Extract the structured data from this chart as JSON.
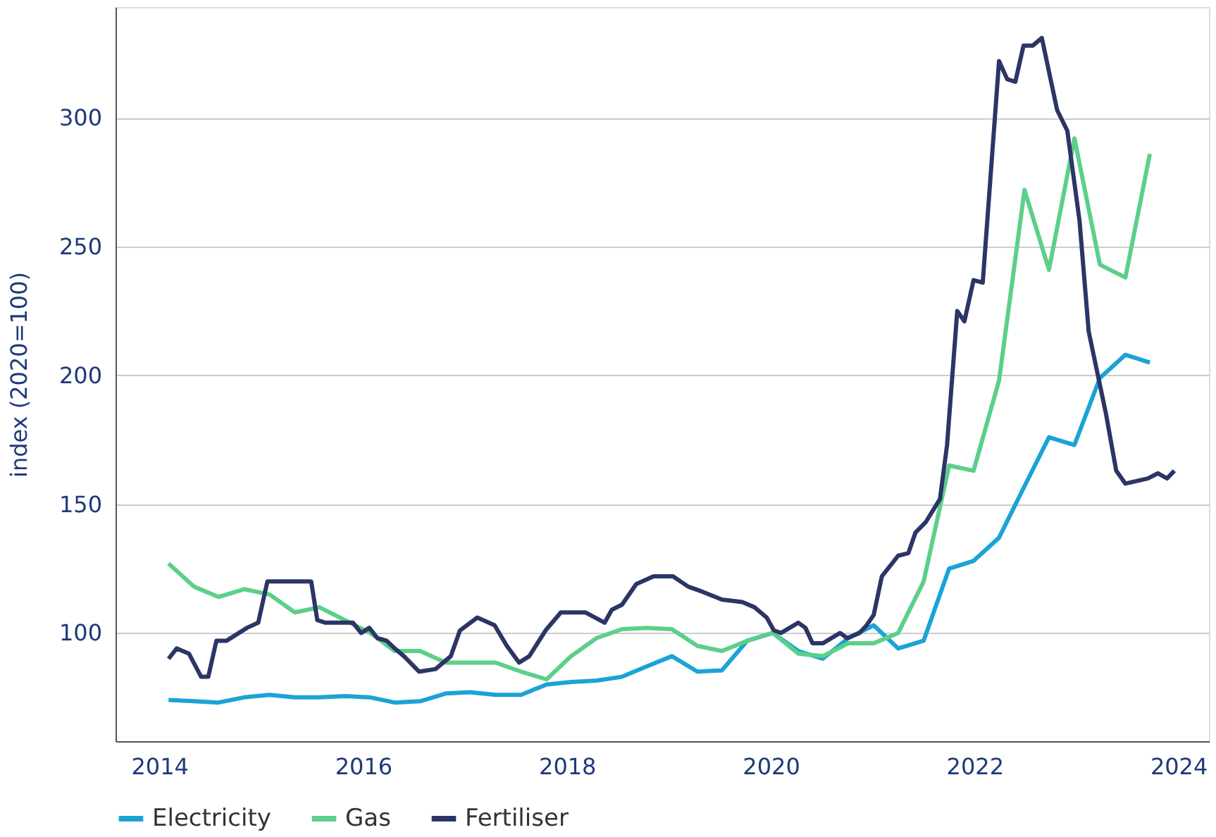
{
  "chart_data": {
    "type": "line",
    "ylabel": "index (2020=100)",
    "xlim": [
      2013.57,
      2024.3
    ],
    "xticks": [
      2014,
      2016,
      2018,
      2020,
      2022,
      2024
    ],
    "ylim": [
      58,
      343
    ],
    "yticks": [
      100,
      150,
      200,
      250,
      300
    ],
    "grid": "y",
    "legend": "bottom",
    "marker": "none",
    "line_style": "solid",
    "series": [
      {
        "name": "Electricity",
        "color": "#1ba3d6",
        "x": [
          2014.09,
          2014.34,
          2014.58,
          2014.83,
          2015.08,
          2015.33,
          2015.57,
          2015.82,
          2016.07,
          2016.31,
          2016.56,
          2016.81,
          2017.05,
          2017.3,
          2017.55,
          2017.8,
          2018.04,
          2018.29,
          2018.54,
          2018.78,
          2019.03,
          2019.28,
          2019.52,
          2019.77,
          2020.02,
          2020.27,
          2020.51,
          2020.76,
          2021.01,
          2021.25,
          2021.5,
          2021.75,
          2021.99,
          2022.24,
          2022.49,
          2022.73,
          2022.98,
          2023.23,
          2023.48,
          2023.72
        ],
        "values": [
          74,
          73.5,
          73,
          75,
          76,
          75,
          75,
          75.5,
          75,
          73,
          73.5,
          76.5,
          77,
          76,
          76,
          80,
          81,
          81.5,
          83,
          87,
          91,
          85,
          85.5,
          97,
          100,
          93,
          90,
          98,
          103,
          94,
          97,
          125,
          128,
          137,
          157,
          176,
          173,
          199,
          208,
          205
        ]
      },
      {
        "name": "Gas",
        "color": "#5ccf8a",
        "x": [
          2014.09,
          2014.34,
          2014.58,
          2014.83,
          2015.08,
          2015.33,
          2015.57,
          2015.82,
          2016.07,
          2016.31,
          2016.56,
          2016.81,
          2017.05,
          2017.3,
          2017.55,
          2017.8,
          2018.04,
          2018.29,
          2018.54,
          2018.78,
          2019.03,
          2019.28,
          2019.52,
          2019.77,
          2020.02,
          2020.27,
          2020.51,
          2020.76,
          2021.01,
          2021.25,
          2021.5,
          2021.75,
          2021.99,
          2022.24,
          2022.49,
          2022.73,
          2022.98,
          2023.23,
          2023.48,
          2023.72
        ],
        "values": [
          127,
          118,
          114,
          117,
          115,
          108,
          110,
          105,
          100,
          93,
          93,
          88.5,
          88.5,
          88.5,
          85,
          82,
          91,
          98,
          101.5,
          102,
          101.5,
          95,
          93,
          97,
          100,
          92,
          91,
          96,
          96,
          100,
          120,
          165,
          163,
          198,
          272,
          241,
          292,
          243,
          238,
          286
        ]
      },
      {
        "name": "Fertiliser",
        "color": "#2b3566",
        "x": [
          2014.09,
          2014.17,
          2014.29,
          2014.41,
          2014.48,
          2014.56,
          2014.66,
          2014.86,
          2014.97,
          2015.06,
          2015.22,
          2015.49,
          2015.55,
          2015.63,
          2015.9,
          2015.98,
          2016.06,
          2016.14,
          2016.23,
          2016.31,
          2016.4,
          2016.55,
          2016.71,
          2016.86,
          2016.95,
          2017.12,
          2017.29,
          2017.41,
          2017.53,
          2017.63,
          2017.79,
          2017.94,
          2018.18,
          2018.37,
          2018.44,
          2018.54,
          2018.68,
          2018.85,
          2019.04,
          2019.19,
          2019.33,
          2019.52,
          2019.72,
          2019.84,
          2019.96,
          2020.03,
          2020.1,
          2020.27,
          2020.34,
          2020.41,
          2020.51,
          2020.68,
          2020.75,
          2020.87,
          2020.94,
          2021.01,
          2021.09,
          2021.25,
          2021.35,
          2021.42,
          2021.52,
          2021.66,
          2021.73,
          2021.83,
          2021.9,
          2021.99,
          2022.08,
          2022.24,
          2022.32,
          2022.4,
          2022.48,
          2022.57,
          2022.66,
          2022.81,
          2022.91,
          2023.03,
          2023.12,
          2023.29,
          2023.39,
          2023.48,
          2023.7,
          2023.8,
          2023.89,
          2023.96
        ],
        "values": [
          90,
          94,
          92,
          83,
          83,
          97,
          97,
          102,
          104,
          120,
          120,
          120,
          105,
          104,
          104,
          100,
          102,
          98,
          97,
          94,
          91,
          85,
          86,
          91,
          101,
          106,
          103,
          95,
          88.5,
          91,
          101,
          108,
          108,
          104,
          109,
          111,
          119,
          122,
          122,
          118,
          116,
          113,
          112,
          110,
          106,
          101,
          100,
          104,
          102,
          96,
          96,
          100,
          98,
          100,
          103,
          107,
          122,
          130,
          131,
          139,
          143,
          152,
          173,
          225,
          221,
          237,
          236,
          322,
          315,
          314,
          328,
          328,
          331,
          303,
          295,
          260,
          217,
          185,
          163,
          158,
          160,
          162,
          160,
          163
        ]
      }
    ]
  }
}
